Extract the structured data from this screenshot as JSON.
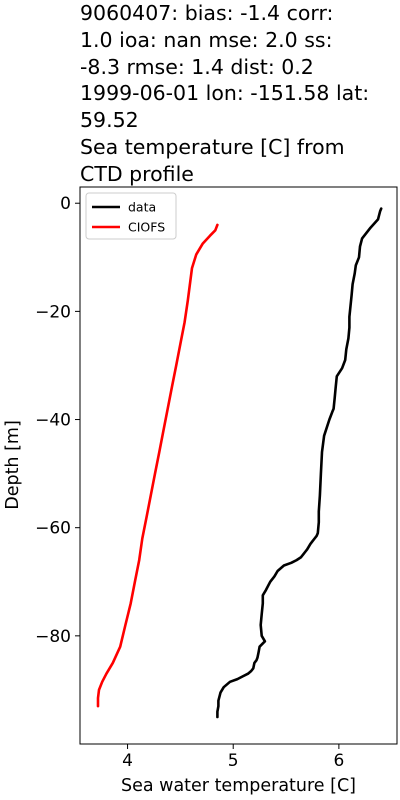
{
  "title_lines": [
    "9060407: bias: -1.4  corr:",
    "1.0  ioa: nan  mse: 2.0  ss:",
    "-8.3  rmse: 1.4  dist: 0.2",
    "1999-06-01 lon: -151.58 lat:",
    "59.52",
    "Sea temperature [C] from",
    "CTD profile"
  ],
  "chart_data": {
    "type": "line",
    "title": "9060407: bias: -1.4  corr: 1.0  ioa: nan  mse: 2.0  ss: -8.3  rmse: 1.4  dist: 0.2 1999-06-01 lon: -151.58 lat: 59.52 Sea temperature [C] from CTD profile",
    "xlabel": "Sea water temperature [C]",
    "ylabel": "Depth [m]",
    "xlim": [
      3.55,
      6.55
    ],
    "ylim": [
      -100,
      3
    ],
    "xticks": [
      4,
      5,
      6
    ],
    "yticks": [
      0,
      -20,
      -40,
      -60,
      -80
    ],
    "ytick_labels": [
      "0",
      "−20",
      "−40",
      "−60",
      "−80"
    ],
    "grid": false,
    "legend_position": "top-left",
    "series": [
      {
        "name": "data",
        "color": "#000000",
        "x": [
          6.4,
          6.39,
          6.37,
          6.3,
          6.22,
          6.2,
          6.19,
          6.16,
          6.15,
          6.13,
          6.12,
          6.11,
          6.1,
          6.1,
          6.09,
          6.07,
          6.06,
          6.03,
          5.98,
          5.97,
          5.96,
          5.95,
          5.94,
          5.91,
          5.86,
          5.84,
          5.83,
          5.82,
          5.81,
          5.81,
          5.8,
          5.79,
          5.77,
          5.75,
          5.73,
          5.7,
          5.68,
          5.66,
          5.64,
          5.6,
          5.55,
          5.48,
          5.42,
          5.39,
          5.35,
          5.31,
          5.28,
          5.28,
          5.27,
          5.26,
          5.27,
          5.3,
          5.25,
          5.24,
          5.23,
          5.22,
          5.2,
          5.19,
          5.17,
          5.14,
          5.09,
          5.04,
          4.97,
          4.91,
          4.88,
          4.86,
          4.86,
          4.85,
          4.85
        ],
        "y": [
          -1,
          -1.5,
          -3,
          -4.5,
          -6.5,
          -8,
          -10,
          -11.5,
          -13,
          -15,
          -17,
          -19,
          -21,
          -23,
          -25,
          -27,
          -29,
          -30.5,
          -32,
          -34,
          -36,
          -38,
          -38.5,
          -40,
          -43,
          -46,
          -50,
          -54,
          -57,
          -59,
          -61,
          -61.5,
          -62,
          -62.5,
          -63,
          -64,
          -64.5,
          -65,
          -65.5,
          -66,
          -66.5,
          -67,
          -68,
          -69,
          -70,
          -71.5,
          -72.5,
          -74,
          -76,
          -78,
          -80,
          -81,
          -82,
          -83,
          -84,
          -84.5,
          -85,
          -86,
          -86.5,
          -87,
          -87.5,
          -88,
          -88.5,
          -89.5,
          -90.5,
          -92,
          -93,
          -94,
          -95
        ]
      },
      {
        "name": "CIOFS",
        "color": "#ff0000",
        "x": [
          4.85,
          4.83,
          4.78,
          4.71,
          4.65,
          4.61,
          4.59,
          4.57,
          4.54,
          4.5,
          4.46,
          4.42,
          4.38,
          4.34,
          4.3,
          4.26,
          4.22,
          4.18,
          4.14,
          4.11,
          4.07,
          4.03,
          3.98,
          3.93,
          3.86,
          3.8,
          3.76,
          3.73,
          3.72,
          3.72
        ],
        "y": [
          -4,
          -5,
          -6,
          -7.5,
          -9.5,
          -12,
          -15,
          -18,
          -22,
          -26,
          -30,
          -34,
          -38,
          -42,
          -46,
          -50,
          -54,
          -58,
          -62,
          -66,
          -70,
          -74,
          -78,
          -82,
          -85,
          -87,
          -88.5,
          -90,
          -91.5,
          -93
        ]
      }
    ]
  }
}
